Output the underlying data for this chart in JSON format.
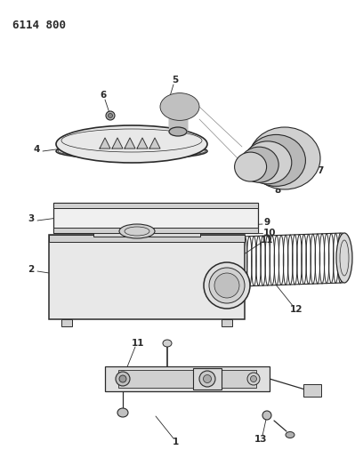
{
  "title": "6114 800",
  "bg_color": "#ffffff",
  "line_color": "#2a2a2a",
  "figsize": [
    4.08,
    5.33
  ],
  "dpi": 100,
  "fig_w": 408,
  "fig_h": 533
}
